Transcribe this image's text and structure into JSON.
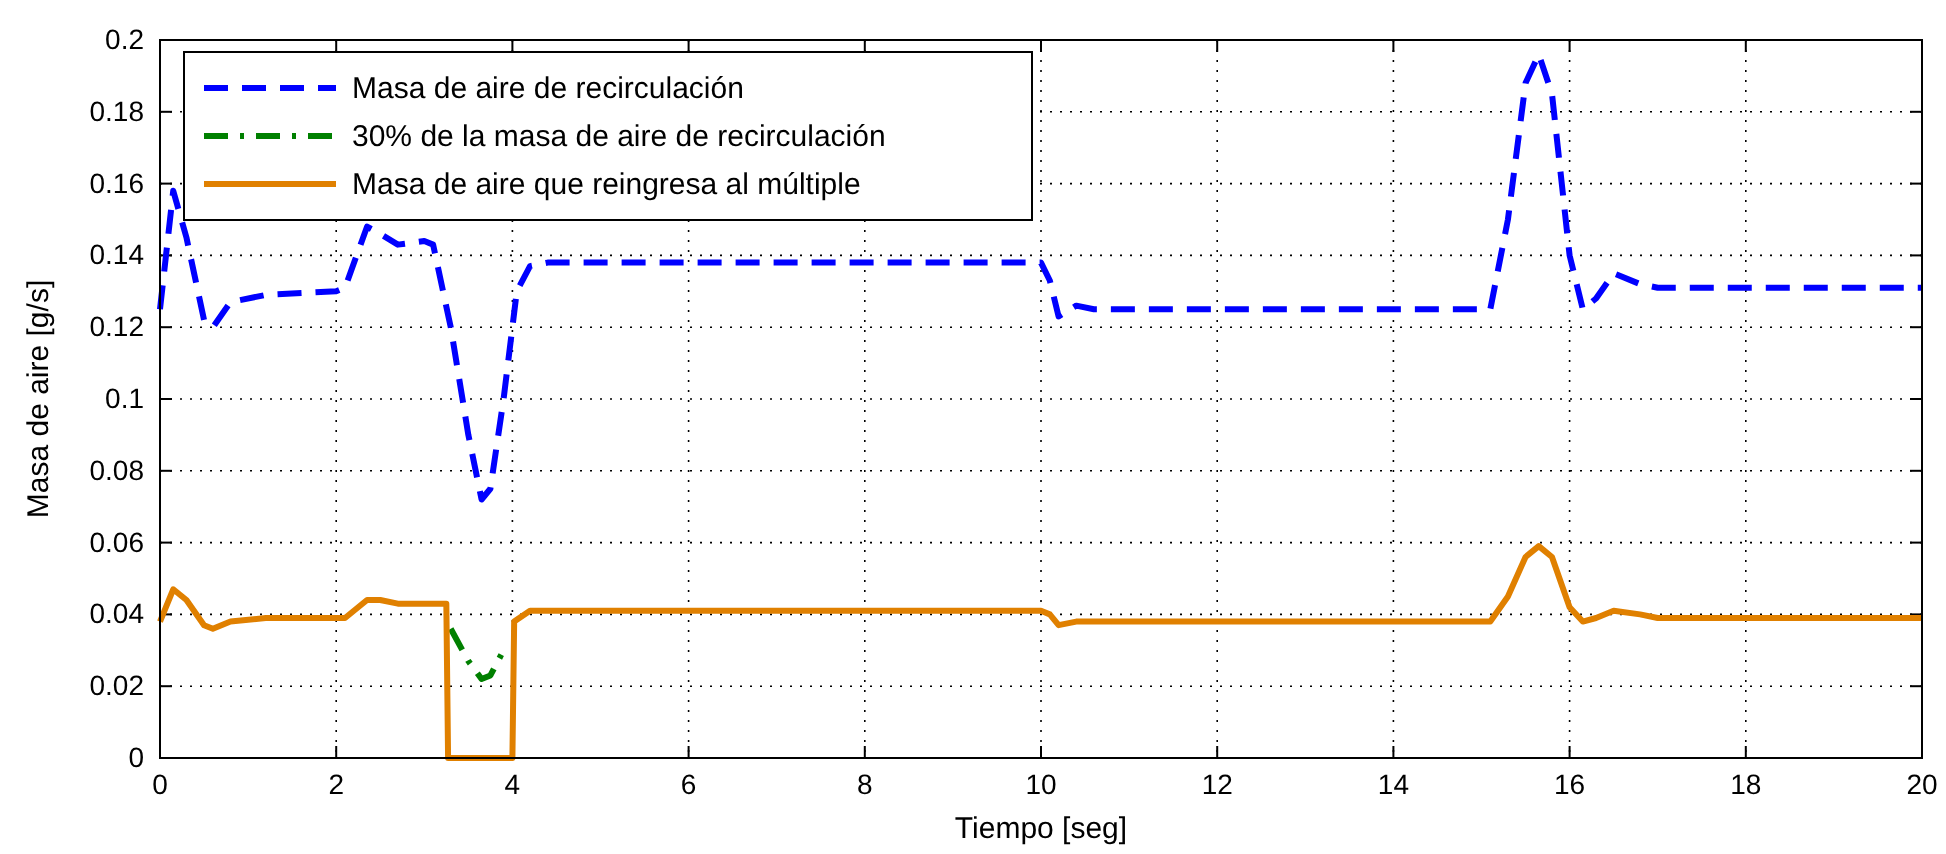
{
  "chart_data": {
    "type": "line",
    "xlabel": "Tiempo [seg]",
    "ylabel": "Masa de aire [g/s]",
    "xlim": [
      0,
      20
    ],
    "ylim": [
      0,
      0.2
    ],
    "xticks": [
      0,
      2,
      4,
      6,
      8,
      10,
      12,
      14,
      16,
      18,
      20
    ],
    "yticks": [
      0,
      0.02,
      0.04,
      0.06,
      0.08,
      0.1,
      0.12,
      0.14,
      0.16,
      0.18,
      0.2
    ],
    "grid": true,
    "legend": "top left",
    "marker": "none",
    "series": [
      {
        "name": "Masa de aire de recirculación",
        "color": "#0000ff",
        "line_style": "dashed",
        "x": [
          0,
          0.15,
          0.3,
          0.5,
          0.6,
          0.8,
          1.2,
          2,
          2.1,
          2.35,
          2.5,
          2.7,
          3,
          3.1,
          3.3,
          3.5,
          3.65,
          3.75,
          3.9,
          4.05,
          4.2,
          4.4,
          10,
          10.1,
          10.2,
          10.4,
          10.6,
          15.1,
          15.3,
          15.5,
          15.65,
          15.8,
          16,
          16.15,
          16.3,
          16.5,
          16.8,
          17,
          20
        ],
        "values": [
          0.125,
          0.158,
          0.145,
          0.122,
          0.12,
          0.127,
          0.129,
          0.13,
          0.131,
          0.148,
          0.146,
          0.143,
          0.144,
          0.143,
          0.12,
          0.09,
          0.072,
          0.075,
          0.1,
          0.13,
          0.137,
          0.138,
          0.138,
          0.133,
          0.123,
          0.126,
          0.125,
          0.125,
          0.15,
          0.188,
          0.196,
          0.185,
          0.14,
          0.125,
          0.128,
          0.135,
          0.132,
          0.131,
          0.131
        ]
      },
      {
        "name": "30% de la masa de aire de recirculación",
        "color": "#008000",
        "line_style": "dashdot",
        "x": [
          3.3,
          3.5,
          3.65,
          3.75,
          3.9
        ],
        "values": [
          0.036,
          0.027,
          0.022,
          0.023,
          0.03
        ]
      },
      {
        "name": "Masa de aire que reingresa al múltiple",
        "color": "#e08000",
        "line_style": "solid",
        "x": [
          0,
          0.15,
          0.3,
          0.5,
          0.6,
          0.8,
          1.2,
          2,
          2.1,
          2.35,
          2.5,
          2.7,
          3,
          3.1,
          3.25,
          3.27,
          4,
          4.02,
          4.2,
          4.4,
          10,
          10.1,
          10.2,
          10.4,
          10.6,
          15.1,
          15.3,
          15.5,
          15.65,
          15.8,
          16,
          16.15,
          16.3,
          16.5,
          16.8,
          17,
          20
        ],
        "values": [
          0.038,
          0.047,
          0.044,
          0.037,
          0.036,
          0.038,
          0.039,
          0.039,
          0.039,
          0.044,
          0.044,
          0.043,
          0.043,
          0.043,
          0.043,
          0,
          0,
          0.038,
          0.041,
          0.041,
          0.041,
          0.04,
          0.037,
          0.038,
          0.038,
          0.038,
          0.045,
          0.056,
          0.059,
          0.056,
          0.042,
          0.038,
          0.039,
          0.041,
          0.04,
          0.039,
          0.039
        ]
      }
    ]
  }
}
